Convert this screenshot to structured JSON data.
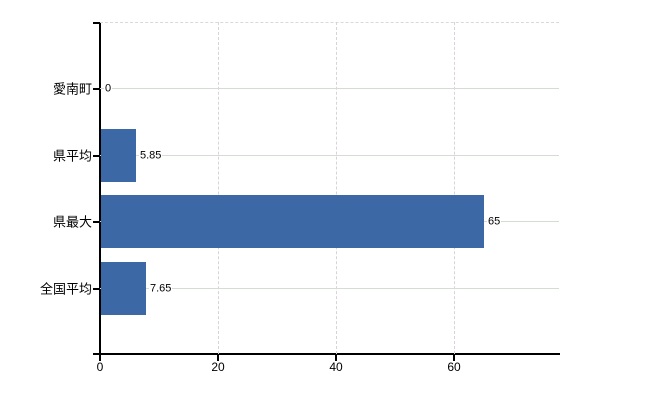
{
  "chart_data": {
    "type": "bar",
    "orientation": "horizontal",
    "title": "",
    "categories": [
      "愛南町",
      "県平均",
      "県最大",
      "全国平均"
    ],
    "values": [
      0,
      5.85,
      65,
      7.65
    ],
    "value_labels": [
      "0",
      "5.85",
      "65",
      "7.65"
    ],
    "x_tick_values": [
      0,
      20,
      40,
      60
    ],
    "x_tick_labels": [
      "0",
      "20",
      "40",
      "60"
    ],
    "xlim": [
      0,
      77.8
    ],
    "grid": true,
    "legend": false,
    "colors": {
      "bar": "#3c69a5",
      "grid_horizontal": "#d4dcd4",
      "grid_vertical": "#d9d2da",
      "top_border": "#d9d9d9",
      "axis": "#000000",
      "text": "#000000",
      "background": "#ffffff"
    }
  }
}
